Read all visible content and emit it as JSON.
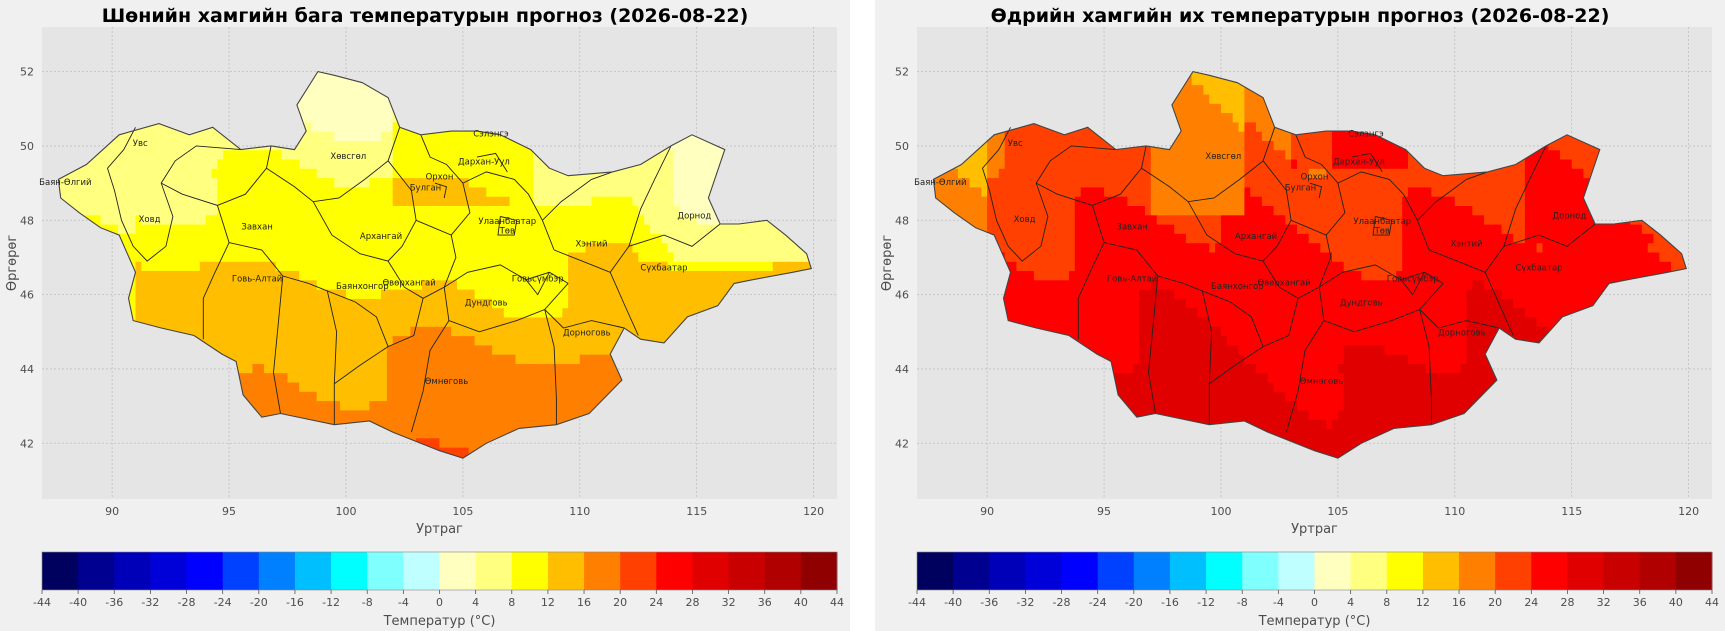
{
  "panels": [
    {
      "id": "left",
      "title": "Шөнийн хамгийн бага температурын прогноз (2026-08-22)",
      "field": "min",
      "xlabel": "Уртраг",
      "ylabel": "Өргөрөг",
      "colorbar_label": "Температур (°C)"
    },
    {
      "id": "right",
      "title": "Өдрийн хамгийн их температурын прогноз (2026-08-22)",
      "field": "max",
      "xlabel": "Уртраг",
      "ylabel": "Өргөрөг",
      "colorbar_label": "Температур (°C)"
    }
  ],
  "chart_data": {
    "type": "heatmap",
    "x_ticks": [
      90,
      95,
      100,
      105,
      110,
      115,
      120
    ],
    "y_ticks": [
      42,
      44,
      46,
      48,
      50,
      52
    ],
    "xlim": [
      87,
      121
    ],
    "ylim": [
      40.5,
      53.2
    ],
    "grid": true,
    "colorbar": {
      "levels": [
        -44,
        -40,
        -36,
        -32,
        -28,
        -24,
        -20,
        -16,
        -12,
        -8,
        -4,
        0,
        4,
        8,
        12,
        16,
        20,
        24,
        28,
        32,
        36,
        40,
        44
      ],
      "tick_labels": [
        "-44",
        "-40",
        "-36",
        "-32",
        "-28",
        "-24",
        "-20",
        "-16",
        "-12",
        "-8",
        "-4",
        "0",
        "4",
        "8",
        "12",
        "16",
        "20",
        "24",
        "28",
        "32",
        "36",
        "40",
        "44"
      ],
      "colors": [
        "#00005e",
        "#000090",
        "#0000b8",
        "#0000d8",
        "#0000ff",
        "#0040ff",
        "#0080ff",
        "#00bfff",
        "#00ffff",
        "#80ffff",
        "#bfffff",
        "#ffffbf",
        "#ffff80",
        "#ffff00",
        "#ffbf00",
        "#ff8000",
        "#ff4000",
        "#ff0000",
        "#e00000",
        "#c80000",
        "#b00000",
        "#900000"
      ]
    },
    "provinces": [
      {
        "name": "Увс",
        "lon": 91.2,
        "lat": 50.0
      },
      {
        "name": "Баян-Өлгий",
        "lon": 88.0,
        "lat": 48.95
      },
      {
        "name": "Ховд",
        "lon": 91.6,
        "lat": 47.95
      },
      {
        "name": "Завхан",
        "lon": 96.2,
        "lat": 47.75
      },
      {
        "name": "Говь-Алтай",
        "lon": 96.2,
        "lat": 46.35
      },
      {
        "name": "Хөвсгөл",
        "lon": 100.1,
        "lat": 49.65
      },
      {
        "name": "Архангай",
        "lon": 101.5,
        "lat": 47.5
      },
      {
        "name": "Булган",
        "lon": 103.4,
        "lat": 48.8
      },
      {
        "name": "Орхон",
        "lon": 104.0,
        "lat": 49.1
      },
      {
        "name": "Сэлэнгэ",
        "lon": 106.2,
        "lat": 50.25
      },
      {
        "name": "Дархан-Уул",
        "lon": 105.9,
        "lat": 49.5
      },
      {
        "name": "Улаанбаатар",
        "lon": 106.9,
        "lat": 47.9
      },
      {
        "name": "Төв",
        "lon": 106.9,
        "lat": 47.65
      },
      {
        "name": "Баянхонгор",
        "lon": 100.7,
        "lat": 46.15
      },
      {
        "name": "Өвөрхангай",
        "lon": 102.7,
        "lat": 46.25
      },
      {
        "name": "Дундговь",
        "lon": 106.0,
        "lat": 45.7
      },
      {
        "name": "Говьсүмбэр",
        "lon": 108.2,
        "lat": 46.35
      },
      {
        "name": "Хэнтий",
        "lon": 110.5,
        "lat": 47.3
      },
      {
        "name": "Дорнод",
        "lon": 114.9,
        "lat": 48.05
      },
      {
        "name": "Сүхбаатар",
        "lon": 113.6,
        "lat": 46.65
      },
      {
        "name": "Дорноговь",
        "lon": 110.3,
        "lat": 44.9
      },
      {
        "name": "Өмнөговь",
        "lon": 104.3,
        "lat": 43.6
      }
    ]
  }
}
